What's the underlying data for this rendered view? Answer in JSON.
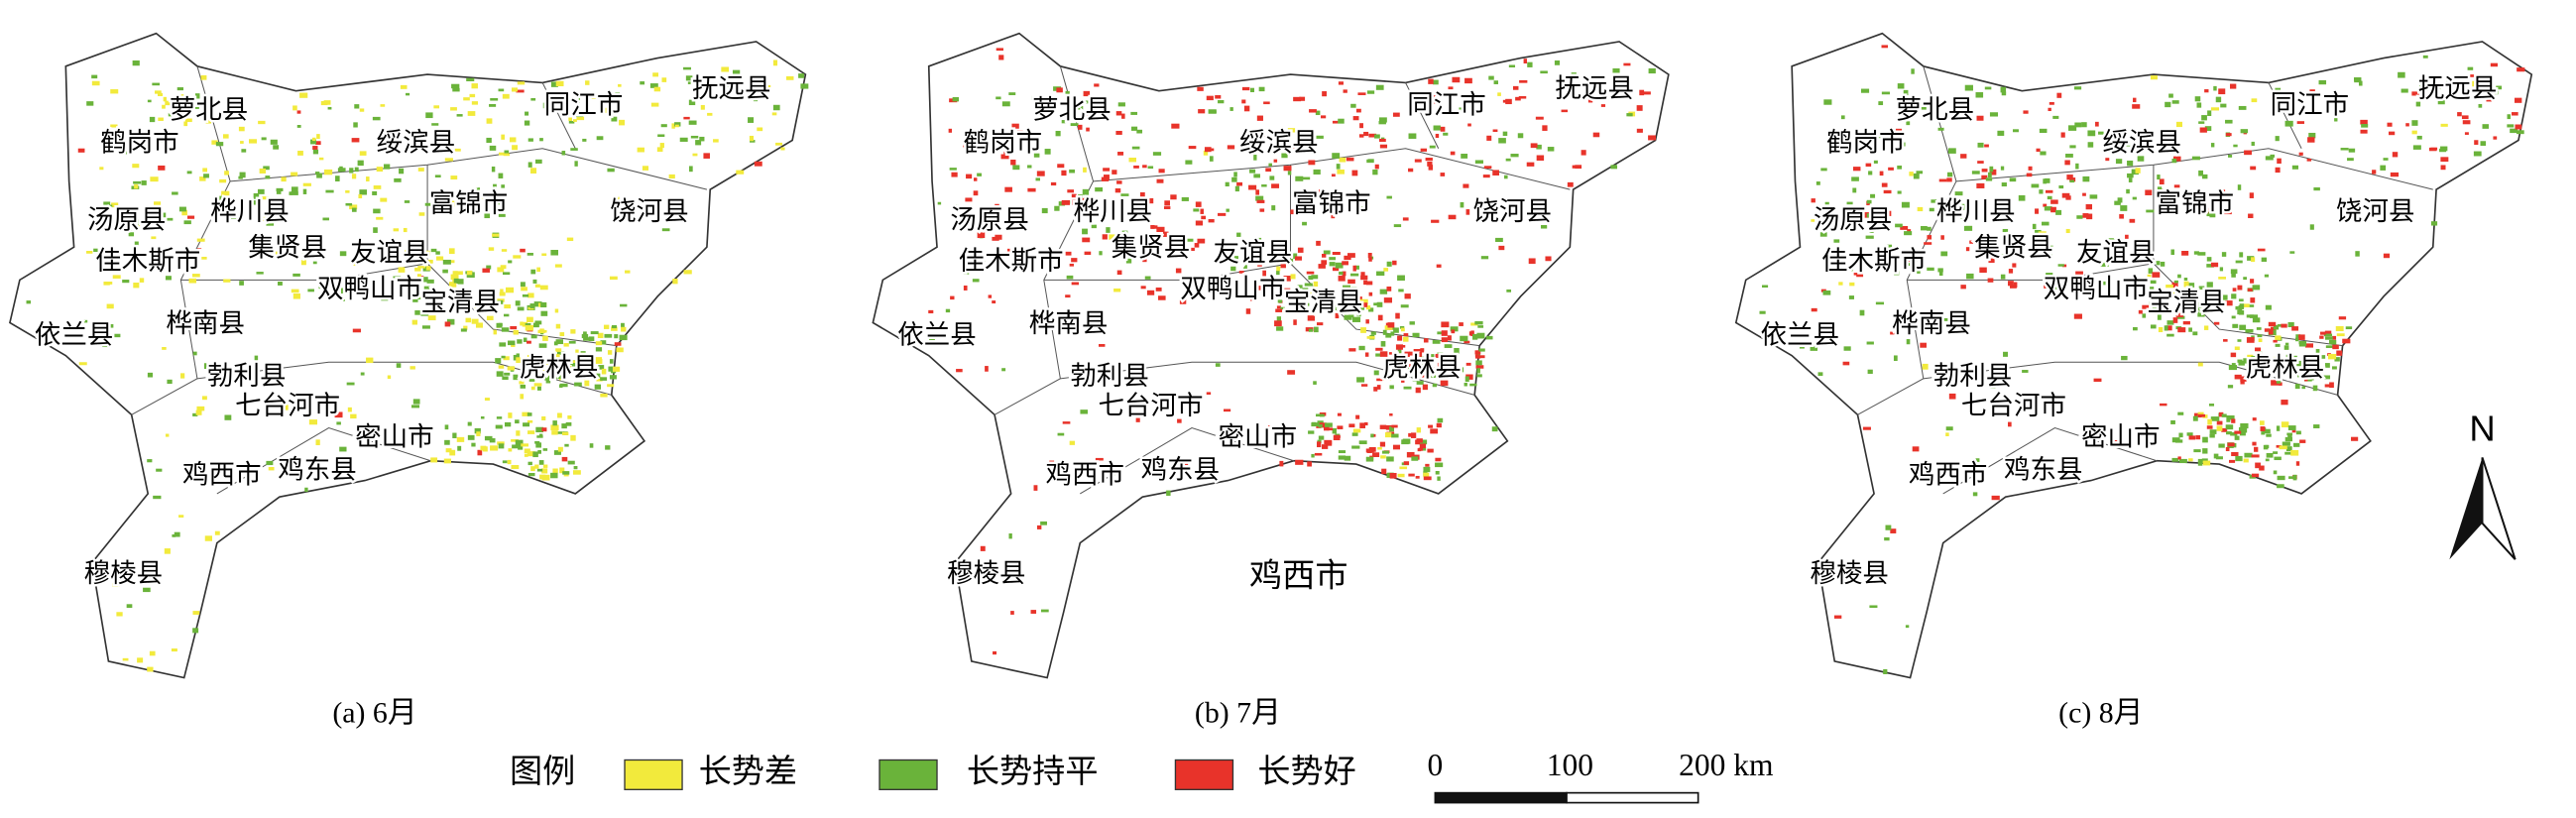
{
  "panels": [
    {
      "caption": "(a) 6月",
      "labels": [
        "萝北县",
        "鹤岗市",
        "绥滨县",
        "同江市",
        "抚远县",
        "汤原县",
        "桦川县",
        "富锦市",
        "饶河县",
        "佳木斯市",
        "集贤县",
        "友谊县",
        "双鸭山市",
        "宝清县",
        "依兰县",
        "桦南县",
        "虎林县",
        "勃利县",
        "七台河市",
        "密山市",
        "鸡西市",
        "鸡东县",
        "穆棱县"
      ]
    },
    {
      "caption": "(b) 7月",
      "labels": [
        "萝北县",
        "鹤岗市",
        "绥滨县",
        "同江市",
        "抚远县",
        "汤原县",
        "桦川县",
        "富锦市",
        "饶河县",
        "佳木斯市",
        "集贤县",
        "友谊县",
        "双鸭山市",
        "宝清县",
        "依兰县",
        "桦南县",
        "虎林县",
        "勃利县",
        "七台河市",
        "密山市",
        "鸡西市",
        "鸡东县",
        "穆棱县",
        "鸡西市"
      ]
    },
    {
      "caption": "(c) 8月",
      "labels": [
        "萝北县",
        "鹤岗市",
        "绥滨县",
        "同江市",
        "抚远县",
        "汤原县",
        "桦川县",
        "富锦市",
        "饶河县",
        "佳木斯市",
        "集贤县",
        "友谊县",
        "双鸭山市",
        "宝清县",
        "依兰县",
        "桦南县",
        "虎林县",
        "勃利县",
        "七台河市",
        "密山市",
        "鸡西市",
        "鸡东县",
        "穆棱县"
      ]
    }
  ],
  "legend": {
    "title": "图例",
    "items": [
      {
        "label": "长势差",
        "color": "#f2ea3c"
      },
      {
        "label": "长势持平",
        "color": "#6ab33a"
      },
      {
        "label": "长势好",
        "color": "#e8332a"
      }
    ]
  },
  "scale_bar": {
    "labels": [
      "0",
      "100",
      "200 km"
    ]
  },
  "north_arrow": "N"
}
